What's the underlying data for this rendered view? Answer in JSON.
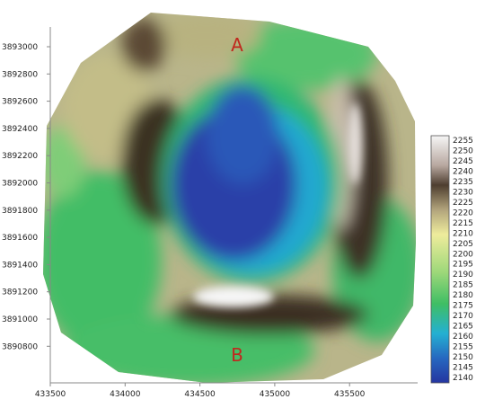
{
  "chart_data": {
    "type": "heatmap",
    "title": "",
    "xlabel": "",
    "ylabel": "",
    "x_ticks": [
      "433500",
      "434000",
      "434500",
      "435000",
      "435500"
    ],
    "y_ticks": [
      "3893000",
      "3892800",
      "3892600",
      "3892400",
      "3892200",
      "3892000",
      "3891800",
      "3891600",
      "3891400",
      "3891200",
      "3891000",
      "3890800"
    ],
    "x_range": [
      433450,
      435900
    ],
    "y_range": [
      3890750,
      3893150
    ],
    "colorbar": {
      "min": 2140,
      "max": 2255,
      "labels": [
        "2255",
        "2250",
        "2245",
        "2240",
        "2235",
        "2230",
        "2225",
        "2220",
        "2215",
        "2210",
        "2205",
        "2200",
        "2195",
        "2190",
        "2185",
        "2180",
        "2175",
        "2170",
        "2165",
        "2160",
        "2155",
        "2150",
        "2145",
        "2140"
      ]
    },
    "annotations": [
      {
        "text": "A",
        "x": 434900,
        "y": 3893050
      },
      {
        "text": "B",
        "x": 434900,
        "y": 3890880
      }
    ],
    "grid": false,
    "legend": "right"
  },
  "colors": {
    "deep_blue": "#2a3fa8",
    "cyan": "#23b1d8",
    "green": "#3fc06a",
    "olive": "#c4bf88",
    "brown": "#5a4a3a",
    "white": "#f6f6f6"
  }
}
